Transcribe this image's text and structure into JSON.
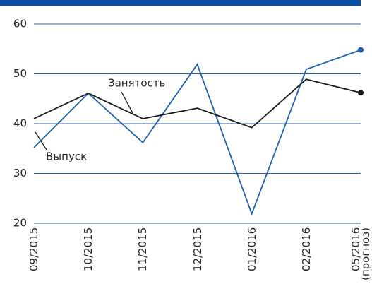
{
  "chart_data": {
    "type": "line",
    "categories": [
      "09/2015",
      "10/2015",
      "11/2015",
      "12/2015",
      "01/2016",
      "02/2016",
      "05/2016\n(прогноз)"
    ],
    "series": [
      {
        "name": "Выпуск",
        "color": "#1f5fad",
        "values": [
          35.2,
          46.1,
          36.2,
          51.9,
          21.9,
          50.9,
          54.8
        ]
      },
      {
        "name": "Занятость",
        "color": "#1a1a1a",
        "values": [
          41,
          46.1,
          41,
          43.1,
          39.2,
          48.9,
          46.2
        ]
      }
    ],
    "ylim": [
      20,
      60
    ],
    "yticks": [
      20,
      30,
      40,
      50,
      60
    ],
    "grid": true,
    "grid_color": "#1f5fad"
  }
}
